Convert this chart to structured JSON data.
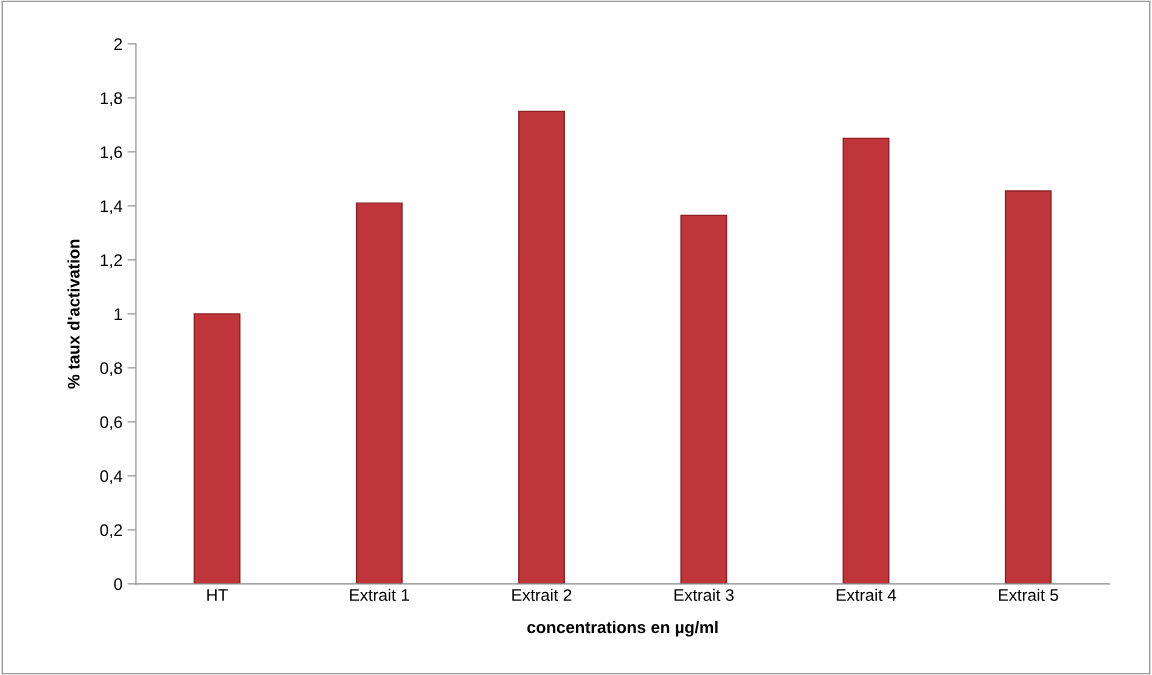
{
  "chart_data": {
    "type": "bar",
    "xlabel": "concentrations en µg/ml",
    "ylabel": "% taux d'activation",
    "categories": [
      "HT",
      "Extrait 1",
      "Extrait 2",
      "Extrait 3",
      "Extrait 4",
      "Extrait 5"
    ],
    "values": [
      1.0,
      1.41,
      1.75,
      1.365,
      1.65,
      1.455
    ],
    "color": "#c0353a",
    "ylim": [
      0,
      2
    ],
    "yticks": [
      {
        "value": 0,
        "label": "0"
      },
      {
        "value": 0.2,
        "label": "0,2"
      },
      {
        "value": 0.4,
        "label": "0,4"
      },
      {
        "value": 0.6,
        "label": "0,6"
      },
      {
        "value": 0.8,
        "label": "0,8"
      },
      {
        "value": 1,
        "label": "1"
      },
      {
        "value": 1.2,
        "label": "1,2"
      },
      {
        "value": 1.4,
        "label": "1,4"
      },
      {
        "value": 1.6,
        "label": "1,6"
      },
      {
        "value": 1.8,
        "label": "1,8"
      },
      {
        "value": 2,
        "label": "2"
      }
    ],
    "grid": false
  }
}
